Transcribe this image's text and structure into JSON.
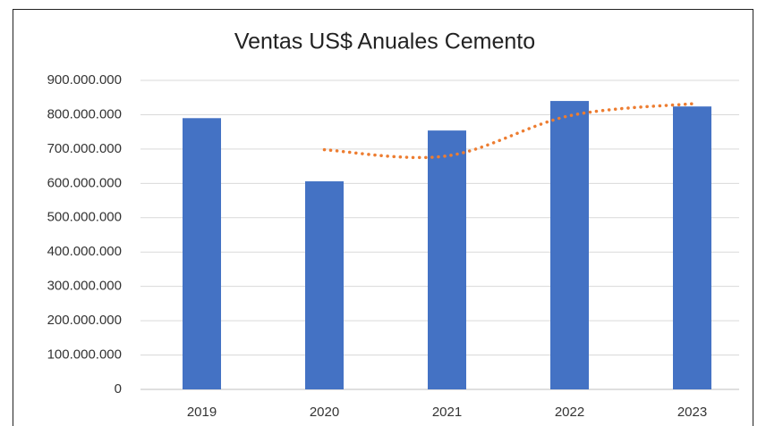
{
  "chart_data": {
    "type": "bar",
    "title": "Ventas US$ Anuales Cemento",
    "categories": [
      "2019",
      "2020",
      "2021",
      "2022",
      "2023"
    ],
    "series": [
      {
        "color": "#4472c4",
        "values": [
          790000000,
          606000000,
          754000000,
          840000000,
          824000000
        ]
      },
      {
        "type": "line",
        "style": "dotted",
        "color": "#ed7d31",
        "values": [
          null,
          698000000,
          680000000,
          797000000,
          832000000
        ]
      }
    ],
    "ylim": [
      0,
      900000000
    ],
    "yticks": [
      0,
      {
        "value": 100000000,
        "label": "100.000.000"
      },
      {
        "value": 200000000,
        "label": "200.000.000"
      },
      {
        "value": 300000000,
        "label": "300.000.000"
      },
      {
        "value": 400000000,
        "label": "400.000.000"
      },
      {
        "value": 500000000,
        "label": "500.000.000"
      },
      {
        "value": 600000000,
        "label": "600.000.000"
      },
      {
        "value": 700000000,
        "label": "700.000.000"
      },
      {
        "value": 800000000,
        "label": "800.000.000"
      },
      {
        "value": 900000000,
        "label": "900.000.000"
      }
    ],
    "grid": true
  }
}
